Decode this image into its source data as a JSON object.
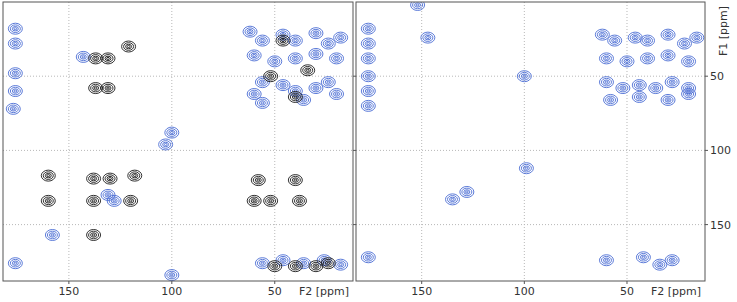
{
  "chart_data": [
    {
      "type": "scatter",
      "x_label": "F2 [ppm]",
      "xlim": [
        182,
        12
      ],
      "xticks": [
        150,
        100,
        50
      ],
      "ylim": [
        0,
        188
      ],
      "yticks": [
        50,
        100,
        150
      ],
      "grid": true,
      "tick_labels": "x",
      "marker": "contour",
      "series": [
        {
          "color": "#4a6cd4",
          "x": [
            176,
            176,
            176,
            176,
            177,
            176,
            62,
            56,
            46,
            40,
            30,
            24,
            18,
            60,
            50,
            40,
            30,
            20,
            56,
            60,
            46,
            40,
            30,
            24,
            56,
            36,
            20,
            56,
            46,
            36,
            26,
            18,
            131,
            128,
            158,
            143,
            100,
            103,
            100
          ],
          "values": [
            18,
            28,
            48,
            60,
            72,
            176,
            20,
            26,
            22,
            26,
            21,
            28,
            24,
            36,
            40,
            38,
            35,
            38,
            54,
            62,
            56,
            60,
            58,
            54,
            68,
            66,
            62,
            176,
            174,
            176,
            174,
            177,
            130,
            134,
            157,
            37,
            88,
            96,
            184
          ]
        },
        {
          "color": "#1a1a1a",
          "x": [
            131,
            137,
            131,
            137,
            121,
            160,
            160,
            138,
            130,
            138,
            120,
            118,
            138,
            60,
            52,
            38,
            58,
            40,
            46,
            34,
            50,
            40,
            30,
            24,
            52,
            40
          ],
          "values": [
            38,
            38,
            58,
            58,
            30,
            117,
            134,
            119,
            119,
            134,
            134,
            117,
            157,
            134,
            134,
            134,
            120,
            120,
            26,
            46,
            178,
            178,
            178,
            176,
            50,
            64
          ]
        }
      ]
    },
    {
      "type": "scatter",
      "x_label": "F2 [ppm]",
      "y_label": "F1 [ppm]",
      "xlim": [
        182,
        12
      ],
      "xticks": [
        150,
        100,
        50
      ],
      "ylim": [
        0,
        188
      ],
      "yticks": [
        50,
        100,
        150
      ],
      "grid": true,
      "marker": "contour",
      "series": [
        {
          "color": "#4a6cd4",
          "x": [
            176,
            176,
            176,
            176,
            176,
            176,
            62,
            56,
            46,
            40,
            30,
            22,
            16,
            60,
            50,
            40,
            30,
            20,
            60,
            52,
            44,
            36,
            28,
            20,
            58,
            44,
            30,
            20,
            152,
            147,
            100,
            99,
            135,
            128,
            176,
            60,
            42,
            28,
            34
          ],
          "values": [
            18,
            28,
            38,
            50,
            60,
            70,
            22,
            26,
            24,
            26,
            22,
            28,
            24,
            38,
            40,
            38,
            36,
            40,
            54,
            58,
            56,
            58,
            54,
            58,
            66,
            64,
            66,
            62,
            2,
            24,
            50,
            112,
            133,
            128,
            172,
            174,
            172,
            174,
            177
          ]
        }
      ]
    }
  ]
}
